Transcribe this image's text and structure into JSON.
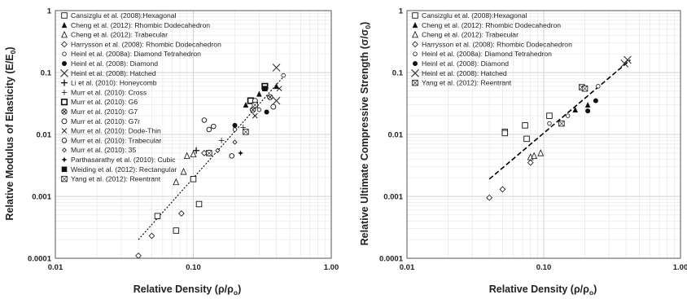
{
  "chart_data": [
    {
      "type": "scatter",
      "title": "",
      "xlabel": "Relative Density (ρ/ρ",
      "xlabel_sub": "o",
      "xlabel_tail": ")",
      "ylabel": "Relative Modulus of Elasticity (E/E",
      "ylabel_sub": "0",
      "ylabel_tail": ")",
      "xscale": "log",
      "yscale": "log",
      "xlim": [
        0.01,
        1.0
      ],
      "ylim": [
        0.0001,
        1
      ],
      "xticks": [
        "0.01",
        "0.10",
        "1.00"
      ],
      "yticks": [
        "0.0001",
        "0.001",
        "0.01",
        "0.1",
        "1"
      ],
      "grid": true,
      "legend_position": "top-left",
      "trendline": {
        "style": "dotted",
        "x": [
          0.04,
          0.46
        ],
        "y": [
          0.0002,
          0.09
        ]
      },
      "series": [
        {
          "name": "Cansizglu et al. (2008):Hexagonal",
          "marker": "square-open",
          "x": [
            0.055,
            0.075,
            0.1,
            0.11
          ],
          "y": [
            0.00048,
            0.00028,
            0.0019,
            0.00075
          ]
        },
        {
          "name": "Cheng et al. (2012): Rhombic Dodecahedron",
          "marker": "triangle-filled",
          "x": [
            0.24,
            0.3,
            0.4
          ],
          "y": [
            0.03,
            0.045,
            0.06
          ]
        },
        {
          "name": "Cheng et al. (2012): Trabecular",
          "marker": "triangle-open",
          "x": [
            0.09,
            0.1,
            0.085,
            0.075
          ],
          "y": [
            0.0045,
            0.0048,
            0.0025,
            0.0017
          ]
        },
        {
          "name": "Harrysson et al. (2008): Rhombic Dodecahedron",
          "marker": "diamond-open",
          "x": [
            0.04,
            0.05,
            0.082,
            0.12
          ],
          "y": [
            0.00011,
            0.00023,
            0.00053,
            0.005
          ]
        },
        {
          "name": "Heinl et al. (2008a): Diamond Tetrahedron",
          "marker": "circle-small",
          "x": [
            0.2,
            0.3,
            0.45
          ],
          "y": [
            0.012,
            0.025,
            0.09
          ]
        },
        {
          "name": "Heinl et al.  (2008): Diamond",
          "marker": "circle-filled",
          "x": [
            0.2,
            0.34
          ],
          "y": [
            0.014,
            0.023
          ]
        },
        {
          "name": "Heinl et al.  (2008): Hatched",
          "marker": "x",
          "x": [
            0.4,
            0.4
          ],
          "y": [
            0.12,
            0.035
          ]
        },
        {
          "name": "Li et al. (2010): Honeycomb",
          "marker": "plus",
          "x": [
            0.105,
            0.13
          ],
          "y": [
            0.0055,
            0.005
          ]
        },
        {
          "name": "Murr et al. (2010): Cross",
          "marker": "plus-thin",
          "x": [
            0.16,
            0.23
          ],
          "y": [
            0.008,
            0.013
          ]
        },
        {
          "name": "Murr et al. (2010): G6",
          "marker": "square-bold",
          "x": [
            0.26,
            0.33
          ],
          "y": [
            0.035,
            0.06
          ]
        },
        {
          "name": "Murr et al. (2010): G7",
          "marker": "circle-x",
          "x": [
            0.27,
            0.36
          ],
          "y": [
            0.025,
            0.04
          ]
        },
        {
          "name": "Murr et al. (2010): G7r",
          "marker": "circle-open",
          "x": [
            0.28,
            0.38
          ],
          "y": [
            0.035,
            0.028
          ]
        },
        {
          "name": "Murr et al. (2010): Dode-Thin",
          "marker": "x-small",
          "x": [
            0.28,
            0.42
          ],
          "y": [
            0.02,
            0.055
          ]
        },
        {
          "name": "Murr et al. (2010): Trabecular",
          "marker": "circle-open-large",
          "x": [
            0.12,
            0.13,
            0.14,
            0.19
          ],
          "y": [
            0.017,
            0.012,
            0.0135,
            0.0045
          ]
        },
        {
          "name": "Murr et al. (2010): 35",
          "marker": "diamond-small",
          "x": [
            0.15,
            0.2
          ],
          "y": [
            0.0055,
            0.0075
          ]
        },
        {
          "name": "Parthasarathy et al. (2010): Cubic",
          "marker": "star",
          "x": [
            0.22
          ],
          "y": [
            0.005
          ]
        },
        {
          "name": "Weiding et al. (2012): Rectangular",
          "marker": "square-filled",
          "x": [
            0.33
          ],
          "y": [
            0.055
          ]
        },
        {
          "name": "Yang et al. (2012): Reentrant",
          "marker": "bowtie",
          "x": [
            0.13,
            0.24,
            0.28
          ],
          "y": [
            0.005,
            0.011,
            0.03
          ]
        }
      ]
    },
    {
      "type": "scatter",
      "title": "",
      "xlabel": "Relative Density (ρ/ρ",
      "xlabel_sub": "o",
      "xlabel_tail": ")",
      "ylabel": "Relative Ultimate Compressive Strength  (σ/σ",
      "ylabel_sub": "0",
      "ylabel_tail": ")",
      "xscale": "log",
      "yscale": "log",
      "xlim": [
        0.01,
        1.0
      ],
      "ylim": [
        0.0001,
        1
      ],
      "xticks": [
        "0.01",
        "0.10",
        "1.00"
      ],
      "yticks": [
        "0.0001",
        "0.001",
        "0.01",
        "0.1",
        "1"
      ],
      "grid": true,
      "legend_position": "top-left",
      "trendline": {
        "style": "dashed",
        "x": [
          0.04,
          0.43
        ],
        "y": [
          0.0019,
          0.16
        ]
      },
      "series": [
        {
          "name": "Cansizglu et al. (2008):Hexagonal",
          "marker": "square-open",
          "x": [
            0.052,
            0.052,
            0.073,
            0.075,
            0.11
          ],
          "y": [
            0.011,
            0.0105,
            0.014,
            0.0085,
            0.02
          ]
        },
        {
          "name": "Cheng et al. (2012): Rhombic Dodecahedron",
          "marker": "triangle-filled",
          "x": [
            0.17,
            0.21
          ],
          "y": [
            0.025,
            0.03
          ]
        },
        {
          "name": "Cheng et al. (2012): Trabecular",
          "marker": "triangle-open",
          "x": [
            0.08,
            0.085,
            0.095
          ],
          "y": [
            0.0043,
            0.0045,
            0.005
          ]
        },
        {
          "name": "Harrysson et al. (2008): Rhombic Dodecahedron",
          "marker": "diamond-open",
          "x": [
            0.04,
            0.05,
            0.08
          ],
          "y": [
            0.00095,
            0.0013,
            0.0035
          ]
        },
        {
          "name": "Heinl et al. (2008a): Diamond Tetrahedron",
          "marker": "circle-small",
          "x": [
            0.11,
            0.15,
            0.25
          ],
          "y": [
            0.015,
            0.02,
            0.06
          ]
        },
        {
          "name": "Heinl et al.  (2008): Diamond",
          "marker": "circle-filled",
          "x": [
            0.21,
            0.24
          ],
          "y": [
            0.024,
            0.035
          ]
        },
        {
          "name": "Heinl et al.  (2008): Hatched",
          "marker": "x",
          "x": [
            0.39,
            0.41
          ],
          "y": [
            0.14,
            0.16
          ]
        },
        {
          "name": "Yang et al. (2012): Reentrant",
          "marker": "bowtie",
          "x": [
            0.135,
            0.19,
            0.2
          ],
          "y": [
            0.015,
            0.058,
            0.055
          ]
        }
      ]
    }
  ]
}
